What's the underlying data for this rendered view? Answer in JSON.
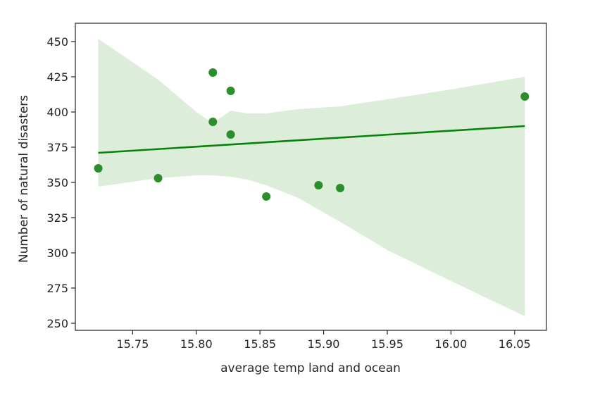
{
  "chart_data": {
    "type": "scatter",
    "xlabel": "average temp land and ocean",
    "ylabel": "Number of natural disasters",
    "xlim": [
      15.705,
      16.075
    ],
    "ylim": [
      245,
      463
    ],
    "xticks": [
      15.75,
      15.8,
      15.85,
      15.9,
      15.95,
      16.0,
      16.05
    ],
    "xtick_labels": [
      "15.75",
      "15.80",
      "15.85",
      "15.90",
      "15.95",
      "16.00",
      "16.05"
    ],
    "yticks": [
      250,
      275,
      300,
      325,
      350,
      375,
      400,
      425,
      450
    ],
    "ytick_labels": [
      "250",
      "275",
      "300",
      "325",
      "350",
      "375",
      "400",
      "425",
      "450"
    ],
    "grid": false,
    "points": [
      {
        "x": 15.723,
        "y": 360
      },
      {
        "x": 15.77,
        "y": 353
      },
      {
        "x": 15.813,
        "y": 428
      },
      {
        "x": 15.813,
        "y": 393
      },
      {
        "x": 15.827,
        "y": 415
      },
      {
        "x": 15.827,
        "y": 384
      },
      {
        "x": 15.855,
        "y": 340
      },
      {
        "x": 15.896,
        "y": 348
      },
      {
        "x": 15.913,
        "y": 346
      },
      {
        "x": 16.058,
        "y": 411
      }
    ],
    "regression_line": {
      "x": [
        15.723,
        16.058
      ],
      "y": [
        371,
        390
      ]
    },
    "confidence_band": {
      "x": [
        15.723,
        15.77,
        15.8,
        15.813,
        15.827,
        15.84,
        15.855,
        15.88,
        15.913,
        15.95,
        16.0,
        16.058
      ],
      "upper": [
        452,
        423,
        400,
        392,
        401,
        399,
        399,
        402,
        404,
        409,
        416,
        425
      ],
      "lower": [
        347,
        353,
        355,
        355,
        354,
        352,
        348,
        339,
        322,
        302,
        280,
        255
      ]
    },
    "colors": {
      "points": "#2a8e2a",
      "line": "#0a820a",
      "band": "#dcedda",
      "axes": "#262626"
    }
  }
}
